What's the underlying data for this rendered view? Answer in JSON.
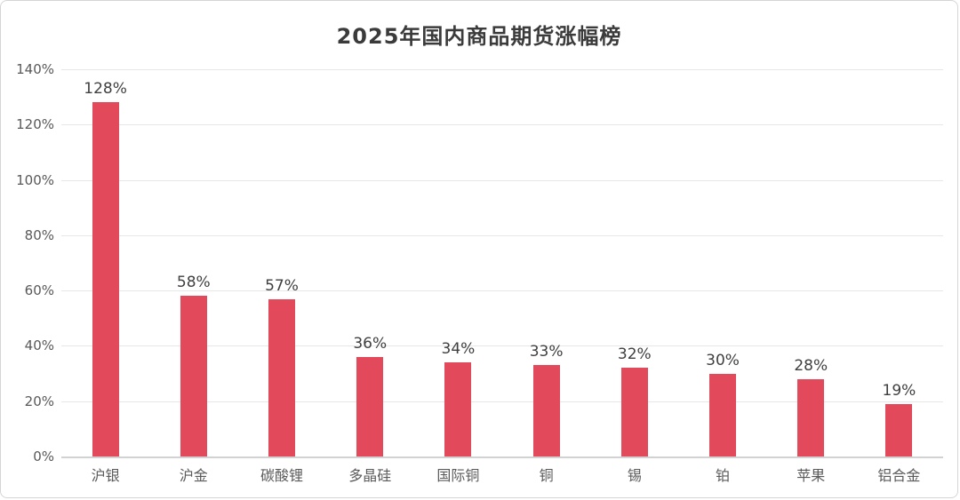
{
  "chart_data": {
    "type": "bar",
    "title": "2025年国内商品期货涨幅榜",
    "categories": [
      "沪银",
      "沪金",
      "碳酸锂",
      "多晶硅",
      "国际铜",
      "铜",
      "锡",
      "铂",
      "苹果",
      "铝合金"
    ],
    "values": [
      128,
      58,
      57,
      36,
      34,
      33,
      32,
      30,
      28,
      19
    ],
    "data_labels": [
      "128%",
      "58%",
      "57%",
      "36%",
      "34%",
      "33%",
      "32%",
      "30%",
      "28%",
      "19%"
    ],
    "xlabel": "",
    "ylabel": "",
    "ylim": [
      0,
      140
    ],
    "ytick_step": 20,
    "yticks": [
      "0%",
      "20%",
      "40%",
      "60%",
      "80%",
      "100%",
      "120%",
      "140%"
    ],
    "grid": true,
    "legend_position": "none",
    "bar_color": "#e2495b",
    "title_color": "#3b3b3b",
    "axis_label_color": "#595959",
    "gridline_color": "#e7e7e7"
  }
}
